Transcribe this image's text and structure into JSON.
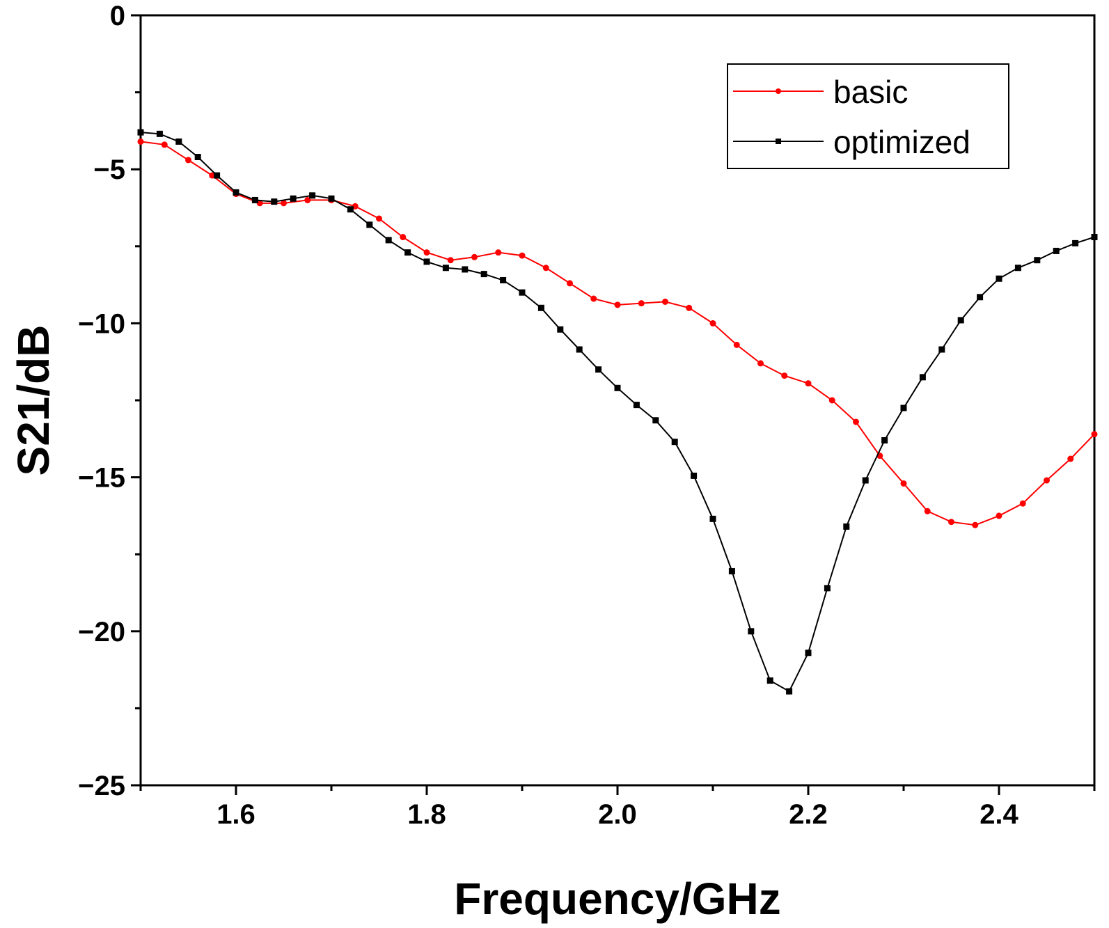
{
  "chart_data": {
    "type": "line",
    "title": "",
    "xlabel": "Frequency/GHz",
    "ylabel": "S21/dB",
    "xlim": [
      1.5,
      2.5
    ],
    "ylim": [
      -25,
      0
    ],
    "grid": false,
    "legend_position": "top-right",
    "x_ticks": [
      1.6,
      1.8,
      2.0,
      2.2,
      2.4
    ],
    "x_tick_labels": [
      "1.6",
      "1.8",
      "2.0",
      "2.2",
      "2.4"
    ],
    "y_ticks": [
      0,
      -5,
      -10,
      -15,
      -20,
      -25
    ],
    "y_tick_labels": [
      "0",
      "−5",
      "−10",
      "−15",
      "−20",
      "−25"
    ],
    "series": [
      {
        "name": "basic",
        "color": "#ff0000",
        "marker": "circle",
        "x": [
          1.5,
          1.525,
          1.55,
          1.575,
          1.6,
          1.625,
          1.65,
          1.675,
          1.7,
          1.725,
          1.75,
          1.775,
          1.8,
          1.825,
          1.85,
          1.875,
          1.9,
          1.925,
          1.95,
          1.975,
          2.0,
          2.025,
          2.05,
          2.075,
          2.1,
          2.125,
          2.15,
          2.175,
          2.2,
          2.225,
          2.25,
          2.275,
          2.3,
          2.325,
          2.35,
          2.375,
          2.4,
          2.425,
          2.45,
          2.475,
          2.5
        ],
        "y": [
          -4.1,
          -4.2,
          -4.7,
          -5.2,
          -5.8,
          -6.1,
          -6.1,
          -6.0,
          -6.0,
          -6.2,
          -6.6,
          -7.2,
          -7.7,
          -7.95,
          -7.85,
          -7.7,
          -7.8,
          -8.2,
          -8.7,
          -9.2,
          -9.4,
          -9.35,
          -9.3,
          -9.5,
          -10.0,
          -10.7,
          -11.3,
          -11.7,
          -11.95,
          -12.5,
          -13.2,
          -14.3,
          -15.2,
          -16.1,
          -16.45,
          -16.55,
          -16.25,
          -15.85,
          -15.1,
          -14.4,
          -13.6
        ]
      },
      {
        "name": "optimized",
        "color": "#000000",
        "marker": "square",
        "x": [
          1.5,
          1.52,
          1.54,
          1.56,
          1.58,
          1.6,
          1.62,
          1.64,
          1.66,
          1.68,
          1.7,
          1.72,
          1.74,
          1.76,
          1.78,
          1.8,
          1.82,
          1.84,
          1.86,
          1.88,
          1.9,
          1.92,
          1.94,
          1.96,
          1.98,
          2.0,
          2.02,
          2.04,
          2.06,
          2.08,
          2.1,
          2.12,
          2.14,
          2.16,
          2.18,
          2.2,
          2.22,
          2.24,
          2.26,
          2.28,
          2.3,
          2.32,
          2.34,
          2.36,
          2.38,
          2.4,
          2.42,
          2.44,
          2.46,
          2.48,
          2.5
        ],
        "y": [
          -3.8,
          -3.85,
          -4.1,
          -4.6,
          -5.2,
          -5.75,
          -6.0,
          -6.05,
          -5.95,
          -5.85,
          -5.95,
          -6.3,
          -6.8,
          -7.3,
          -7.7,
          -8.0,
          -8.2,
          -8.25,
          -8.4,
          -8.6,
          -9.0,
          -9.5,
          -10.2,
          -10.85,
          -11.5,
          -12.1,
          -12.65,
          -13.15,
          -13.85,
          -14.95,
          -16.35,
          -18.05,
          -20.0,
          -21.6,
          -21.95,
          -20.7,
          -18.6,
          -16.6,
          -15.1,
          -13.8,
          -12.75,
          -11.75,
          -10.85,
          -9.9,
          -9.15,
          -8.55,
          -8.2,
          -7.95,
          -7.65,
          -7.4,
          -7.2
        ]
      }
    ]
  }
}
